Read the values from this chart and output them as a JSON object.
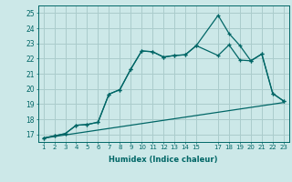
{
  "bg_color": "#cce8e8",
  "grid_color": "#aacccc",
  "line_color": "#006666",
  "xlabel": "Humidex (Indice chaleur)",
  "xlim": [
    0.5,
    23.5
  ],
  "ylim": [
    16.5,
    25.5
  ],
  "yticks": [
    17,
    18,
    19,
    20,
    21,
    22,
    23,
    24,
    25
  ],
  "xticks": [
    1,
    2,
    3,
    4,
    5,
    6,
    7,
    8,
    9,
    10,
    11,
    12,
    13,
    14,
    15,
    17,
    18,
    19,
    20,
    21,
    22,
    23
  ],
  "line1_x": [
    1,
    2,
    3,
    4,
    5,
    6,
    7,
    8,
    9,
    10,
    11,
    12,
    13,
    14,
    15,
    17,
    18,
    19,
    20,
    21,
    22,
    23
  ],
  "line1_y": [
    16.75,
    16.9,
    17.05,
    17.6,
    17.65,
    17.8,
    19.65,
    19.95,
    21.3,
    22.5,
    22.45,
    22.1,
    22.2,
    22.25,
    22.85,
    22.2,
    22.9,
    21.9,
    21.85,
    22.3,
    19.7,
    19.2
  ],
  "line2_x": [
    1,
    2,
    3,
    4,
    5,
    6,
    7,
    8,
    9,
    10,
    11,
    12,
    13,
    14,
    15,
    17,
    18,
    19,
    20,
    21,
    22,
    23
  ],
  "line2_y": [
    16.75,
    16.9,
    17.05,
    17.6,
    17.65,
    17.8,
    19.65,
    19.95,
    21.3,
    22.5,
    22.45,
    22.1,
    22.2,
    22.25,
    22.85,
    24.85,
    23.65,
    22.85,
    21.85,
    22.3,
    19.7,
    19.2
  ],
  "line3_x": [
    1,
    23
  ],
  "line3_y": [
    16.75,
    19.1
  ]
}
